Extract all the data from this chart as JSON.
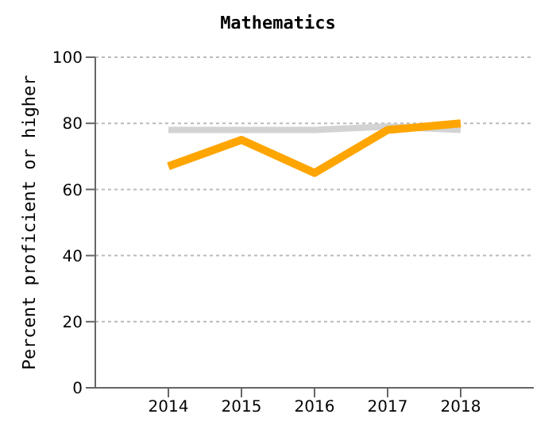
{
  "chart_data": {
    "type": "line",
    "title": "Mathematics",
    "ylabel": "Percent proficient or higher",
    "x": [
      2014,
      2015,
      2016,
      2017,
      2018
    ],
    "xlim": [
      2013,
      2019
    ],
    "xticks": [
      2014,
      2015,
      2016,
      2017,
      2018
    ],
    "ylim": [
      0,
      100
    ],
    "yticks": [
      0,
      20,
      40,
      60,
      80,
      100
    ],
    "grid": "y",
    "legend": false,
    "marker": "none",
    "series": [
      {
        "color": "#d3d3d3",
        "values": [
          78,
          78,
          78,
          79,
          78
        ]
      },
      {
        "color": "#ffa500",
        "values": [
          67,
          75,
          65,
          78,
          80
        ]
      }
    ]
  }
}
